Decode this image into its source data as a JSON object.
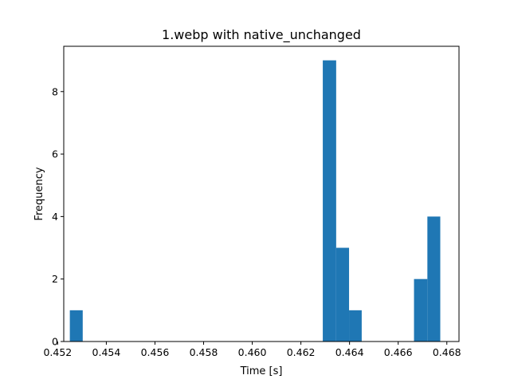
{
  "chart_data": {
    "type": "bar",
    "title": "1.webp with native_unchanged",
    "xlabel": "Time [s]",
    "ylabel": "Frequency",
    "xlim": [
      0.45225,
      0.4685
    ],
    "ylim": [
      0,
      9.45
    ],
    "x_ticks": [
      "0.452",
      "0.454",
      "0.456",
      "0.458",
      "0.460",
      "0.462",
      "0.464",
      "0.466",
      "0.468"
    ],
    "y_ticks": [
      "0",
      "2",
      "4",
      "6",
      "8"
    ],
    "bar_color": "#1f77b4",
    "bins": [
      {
        "x0": 0.4525,
        "x1": 0.45303,
        "value": 1
      },
      {
        "x0": 0.4629,
        "x1": 0.46345,
        "value": 9
      },
      {
        "x0": 0.46345,
        "x1": 0.46398,
        "value": 3
      },
      {
        "x0": 0.46398,
        "x1": 0.4645,
        "value": 1
      },
      {
        "x0": 0.46665,
        "x1": 0.4672,
        "value": 2
      },
      {
        "x0": 0.4672,
        "x1": 0.46773,
        "value": 4
      }
    ],
    "grid": false,
    "legend": "none"
  }
}
